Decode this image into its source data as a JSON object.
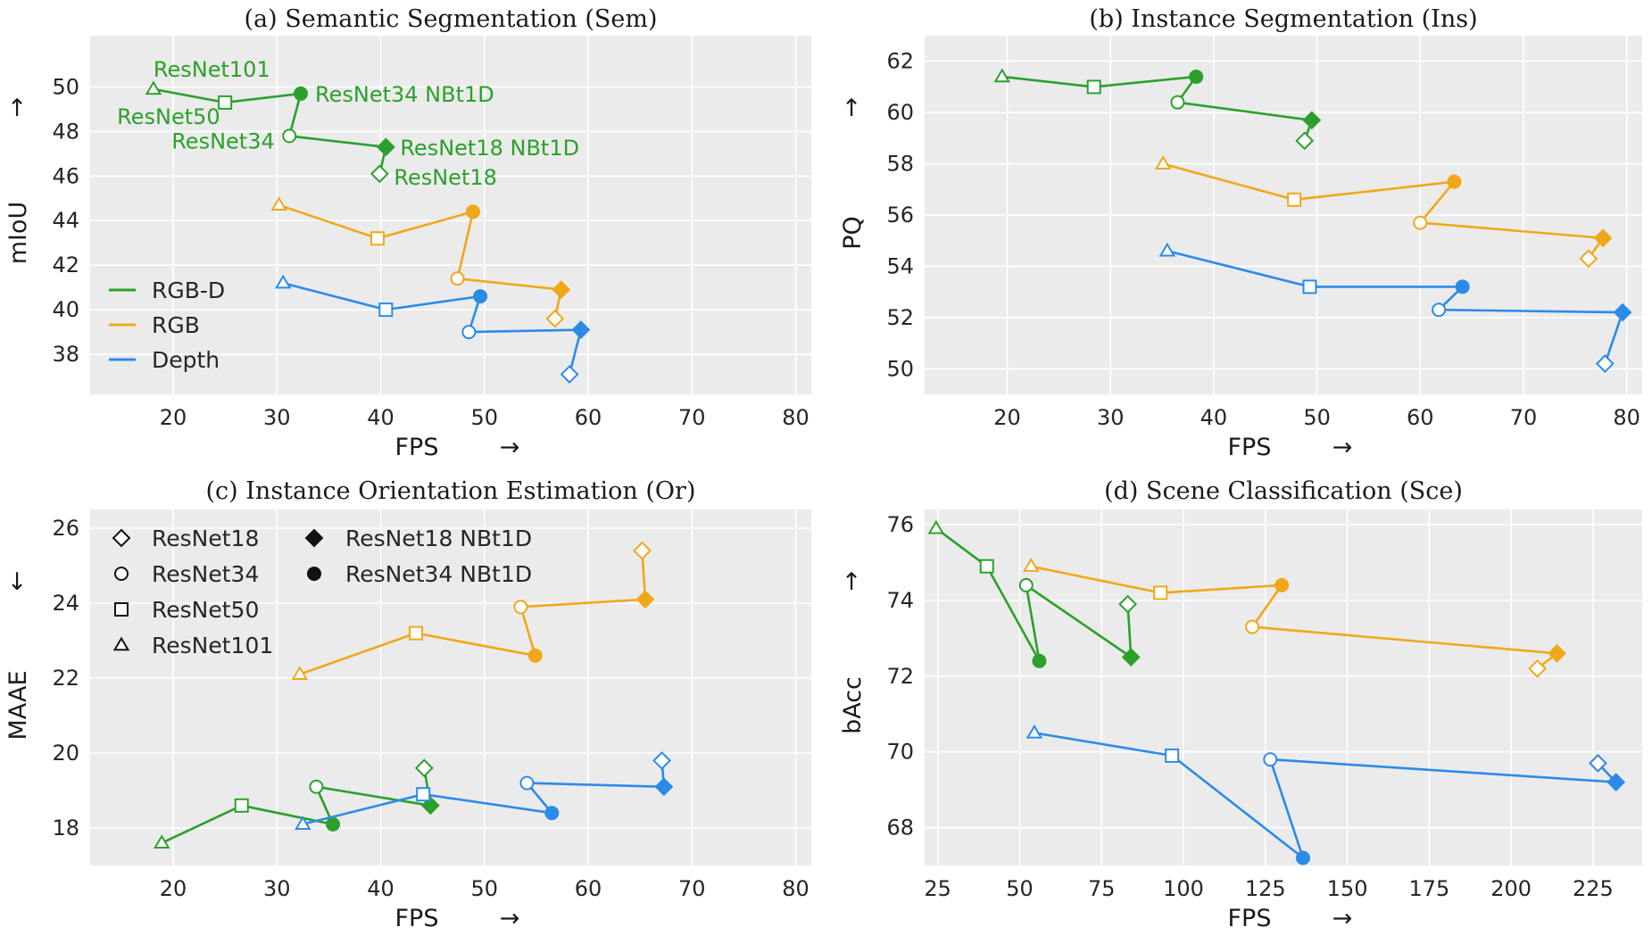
{
  "colors": {
    "RGB-D": "#2ca02c",
    "RGB": "#f0a81a",
    "Depth": "#2b8be8",
    "background": "#ebebeb",
    "grid": "#ffffff"
  },
  "markers": {
    "ResNet18": "diamond",
    "ResNet34": "circle",
    "ResNet50": "square",
    "ResNet101": "triangle"
  },
  "line_order": [
    "ResNet101",
    "ResNet50",
    "ResNet34 NBt1D",
    "ResNet34",
    "ResNet18 NBt1D",
    "ResNet18"
  ],
  "legends": {
    "modalities": [
      "RGB-D",
      "RGB",
      "Depth"
    ],
    "backbones_col1": [
      "ResNet18",
      "ResNet34",
      "ResNet50",
      "ResNet101"
    ],
    "backbones_col2": [
      "ResNet18 NBt1D",
      "ResNet34 NBt1D"
    ]
  },
  "chart_data": [
    {
      "type": "scatter",
      "title": "(a) Semantic Segmentation (Sem)",
      "xlabel": "FPS",
      "xarrow": "→",
      "ylabel": "mIoU",
      "yarrow": "↑",
      "xlim": [
        12,
        81.5
      ],
      "ylim": [
        36.2,
        52.3
      ],
      "xticks": [
        20,
        30,
        40,
        50,
        60,
        70,
        80
      ],
      "yticks": [
        38,
        40,
        42,
        44,
        46,
        48,
        50
      ],
      "series": [
        {
          "name": "RGB-D",
          "points": [
            {
              "backbone": "ResNet101",
              "x": 18.1,
              "y": 49.9
            },
            {
              "backbone": "ResNet50",
              "x": 25.0,
              "y": 49.3
            },
            {
              "backbone": "ResNet34 NBt1D",
              "x": 32.3,
              "y": 49.7
            },
            {
              "backbone": "ResNet34",
              "x": 31.2,
              "y": 47.8
            },
            {
              "backbone": "ResNet18 NBt1D",
              "x": 40.5,
              "y": 47.3
            },
            {
              "backbone": "ResNet18",
              "x": 39.9,
              "y": 46.1
            }
          ]
        },
        {
          "name": "RGB",
          "points": [
            {
              "backbone": "ResNet101",
              "x": 30.2,
              "y": 44.7
            },
            {
              "backbone": "ResNet50",
              "x": 39.7,
              "y": 43.2
            },
            {
              "backbone": "ResNet34 NBt1D",
              "x": 48.9,
              "y": 44.4
            },
            {
              "backbone": "ResNet34",
              "x": 47.4,
              "y": 41.4
            },
            {
              "backbone": "ResNet18 NBt1D",
              "x": 57.4,
              "y": 40.9
            },
            {
              "backbone": "ResNet18",
              "x": 56.8,
              "y": 39.6
            }
          ]
        },
        {
          "name": "Depth",
          "points": [
            {
              "backbone": "ResNet101",
              "x": 30.6,
              "y": 41.2
            },
            {
              "backbone": "ResNet50",
              "x": 40.5,
              "y": 40.0
            },
            {
              "backbone": "ResNet34 NBt1D",
              "x": 49.6,
              "y": 40.6
            },
            {
              "backbone": "ResNet34",
              "x": 48.5,
              "y": 39.0
            },
            {
              "backbone": "ResNet18 NBt1D",
              "x": 59.3,
              "y": 39.1
            },
            {
              "backbone": "ResNet18",
              "x": 58.2,
              "y": 37.1
            }
          ]
        }
      ],
      "annotations": [
        {
          "text": "ResNet101",
          "series": "RGB-D",
          "backbone": "ResNet101"
        },
        {
          "text": "ResNet50",
          "series": "RGB-D",
          "backbone": "ResNet50"
        },
        {
          "text": "ResNet34 NBt1D",
          "series": "RGB-D",
          "backbone": "ResNet34 NBt1D"
        },
        {
          "text": "ResNet34",
          "series": "RGB-D",
          "backbone": "ResNet34"
        },
        {
          "text": "ResNet18 NBt1D",
          "series": "RGB-D",
          "backbone": "ResNet18 NBt1D"
        },
        {
          "text": "ResNet18",
          "series": "RGB-D",
          "backbone": "ResNet18"
        }
      ],
      "legend": "modalities"
    },
    {
      "type": "scatter",
      "title": "(b) Instance Segmentation (Ins)",
      "xlabel": "FPS",
      "xarrow": "→",
      "ylabel": "PQ",
      "yarrow": "↑",
      "xlim": [
        12,
        81.5
      ],
      "ylim": [
        49.0,
        63.0
      ],
      "xticks": [
        20,
        30,
        40,
        50,
        60,
        70,
        80
      ],
      "yticks": [
        50,
        52,
        54,
        56,
        58,
        60,
        62
      ],
      "series": [
        {
          "name": "RGB-D",
          "points": [
            {
              "backbone": "ResNet101",
              "x": 19.5,
              "y": 61.4
            },
            {
              "backbone": "ResNet50",
              "x": 28.4,
              "y": 61.0
            },
            {
              "backbone": "ResNet34 NBt1D",
              "x": 38.3,
              "y": 61.4
            },
            {
              "backbone": "ResNet34",
              "x": 36.5,
              "y": 60.4
            },
            {
              "backbone": "ResNet18 NBt1D",
              "x": 49.5,
              "y": 59.7
            },
            {
              "backbone": "ResNet18",
              "x": 48.8,
              "y": 58.9
            }
          ]
        },
        {
          "name": "RGB",
          "points": [
            {
              "backbone": "ResNet101",
              "x": 35.1,
              "y": 58.0
            },
            {
              "backbone": "ResNet50",
              "x": 47.8,
              "y": 56.6
            },
            {
              "backbone": "ResNet34 NBt1D",
              "x": 63.3,
              "y": 57.3
            },
            {
              "backbone": "ResNet34",
              "x": 60.0,
              "y": 55.7
            },
            {
              "backbone": "ResNet18 NBt1D",
              "x": 77.7,
              "y": 55.1
            },
            {
              "backbone": "ResNet18",
              "x": 76.3,
              "y": 54.3
            }
          ]
        },
        {
          "name": "Depth",
          "points": [
            {
              "backbone": "ResNet101",
              "x": 35.5,
              "y": 54.6
            },
            {
              "backbone": "ResNet50",
              "x": 49.3,
              "y": 53.2
            },
            {
              "backbone": "ResNet34 NBt1D",
              "x": 64.1,
              "y": 53.2
            },
            {
              "backbone": "ResNet34",
              "x": 61.8,
              "y": 52.3
            },
            {
              "backbone": "ResNet18 NBt1D",
              "x": 79.6,
              "y": 52.2
            },
            {
              "backbone": "ResNet18",
              "x": 77.9,
              "y": 50.2
            }
          ]
        }
      ]
    },
    {
      "type": "scatter",
      "title": "(c) Instance Orientation Estimation (Or)",
      "xlabel": "FPS",
      "xarrow": "→",
      "ylabel": "MAAE",
      "yarrow": "↓",
      "xlim": [
        12,
        81.5
      ],
      "ylim": [
        17.0,
        26.5
      ],
      "xticks": [
        20,
        30,
        40,
        50,
        60,
        70,
        80
      ],
      "yticks": [
        18,
        20,
        22,
        24,
        26
      ],
      "series": [
        {
          "name": "RGB-D",
          "points": [
            {
              "backbone": "ResNet101",
              "x": 18.9,
              "y": 17.6
            },
            {
              "backbone": "ResNet50",
              "x": 26.6,
              "y": 18.6
            },
            {
              "backbone": "ResNet34 NBt1D",
              "x": 35.4,
              "y": 18.1
            },
            {
              "backbone": "ResNet34",
              "x": 33.8,
              "y": 19.1
            },
            {
              "backbone": "ResNet18 NBt1D",
              "x": 44.8,
              "y": 18.6
            },
            {
              "backbone": "ResNet18",
              "x": 44.2,
              "y": 19.6
            }
          ]
        },
        {
          "name": "RGB",
          "points": [
            {
              "backbone": "ResNet101",
              "x": 32.2,
              "y": 22.1
            },
            {
              "backbone": "ResNet50",
              "x": 43.4,
              "y": 23.2
            },
            {
              "backbone": "ResNet34 NBt1D",
              "x": 54.9,
              "y": 22.6
            },
            {
              "backbone": "ResNet34",
              "x": 53.5,
              "y": 23.9
            },
            {
              "backbone": "ResNet18 NBt1D",
              "x": 65.5,
              "y": 24.1
            },
            {
              "backbone": "ResNet18",
              "x": 65.2,
              "y": 25.4
            }
          ]
        },
        {
          "name": "Depth",
          "points": [
            {
              "backbone": "ResNet101",
              "x": 32.5,
              "y": 18.1
            },
            {
              "backbone": "ResNet50",
              "x": 44.1,
              "y": 18.9
            },
            {
              "backbone": "ResNet34 NBt1D",
              "x": 56.5,
              "y": 18.4
            },
            {
              "backbone": "ResNet34",
              "x": 54.1,
              "y": 19.2
            },
            {
              "backbone": "ResNet18 NBt1D",
              "x": 67.3,
              "y": 19.1
            },
            {
              "backbone": "ResNet18",
              "x": 67.1,
              "y": 19.8
            }
          ]
        }
      ],
      "legend": "backbones"
    },
    {
      "type": "scatter",
      "title": "(d) Scene Classification (Sce)",
      "xlabel": "FPS",
      "xarrow": "→",
      "ylabel": "bAcc",
      "yarrow": "↑",
      "xlim": [
        21,
        240
      ],
      "ylim": [
        67.0,
        76.4
      ],
      "xticks": [
        25,
        50,
        75,
        100,
        125,
        150,
        175,
        200,
        225
      ],
      "yticks": [
        68,
        70,
        72,
        74,
        76
      ],
      "series": [
        {
          "name": "RGB-D",
          "points": [
            {
              "backbone": "ResNet101",
              "x": 24.5,
              "y": 75.9
            },
            {
              "backbone": "ResNet50",
              "x": 40.0,
              "y": 74.9
            },
            {
              "backbone": "ResNet34 NBt1D",
              "x": 56.0,
              "y": 72.4
            },
            {
              "backbone": "ResNet34",
              "x": 52.0,
              "y": 74.4
            },
            {
              "backbone": "ResNet18 NBt1D",
              "x": 84.0,
              "y": 72.5
            },
            {
              "backbone": "ResNet18",
              "x": 83.0,
              "y": 73.9
            }
          ]
        },
        {
          "name": "RGB",
          "points": [
            {
              "backbone": "ResNet101",
              "x": 53.5,
              "y": 74.9
            },
            {
              "backbone": "ResNet50",
              "x": 93.0,
              "y": 74.2
            },
            {
              "backbone": "ResNet34 NBt1D",
              "x": 130.0,
              "y": 74.4
            },
            {
              "backbone": "ResNet34",
              "x": 121.0,
              "y": 73.3
            },
            {
              "backbone": "ResNet18 NBt1D",
              "x": 214.0,
              "y": 72.6
            },
            {
              "backbone": "ResNet18",
              "x": 208.0,
              "y": 72.2
            }
          ]
        },
        {
          "name": "Depth",
          "points": [
            {
              "backbone": "ResNet101",
              "x": 54.5,
              "y": 70.5
            },
            {
              "backbone": "ResNet50",
              "x": 96.5,
              "y": 69.9
            },
            {
              "backbone": "ResNet34 NBt1D",
              "x": 136.5,
              "y": 67.2
            },
            {
              "backbone": "ResNet34",
              "x": 126.5,
              "y": 69.8
            },
            {
              "backbone": "ResNet18 NBt1D",
              "x": 232.0,
              "y": 69.2
            },
            {
              "backbone": "ResNet18",
              "x": 226.5,
              "y": 69.7
            }
          ]
        }
      ]
    }
  ]
}
